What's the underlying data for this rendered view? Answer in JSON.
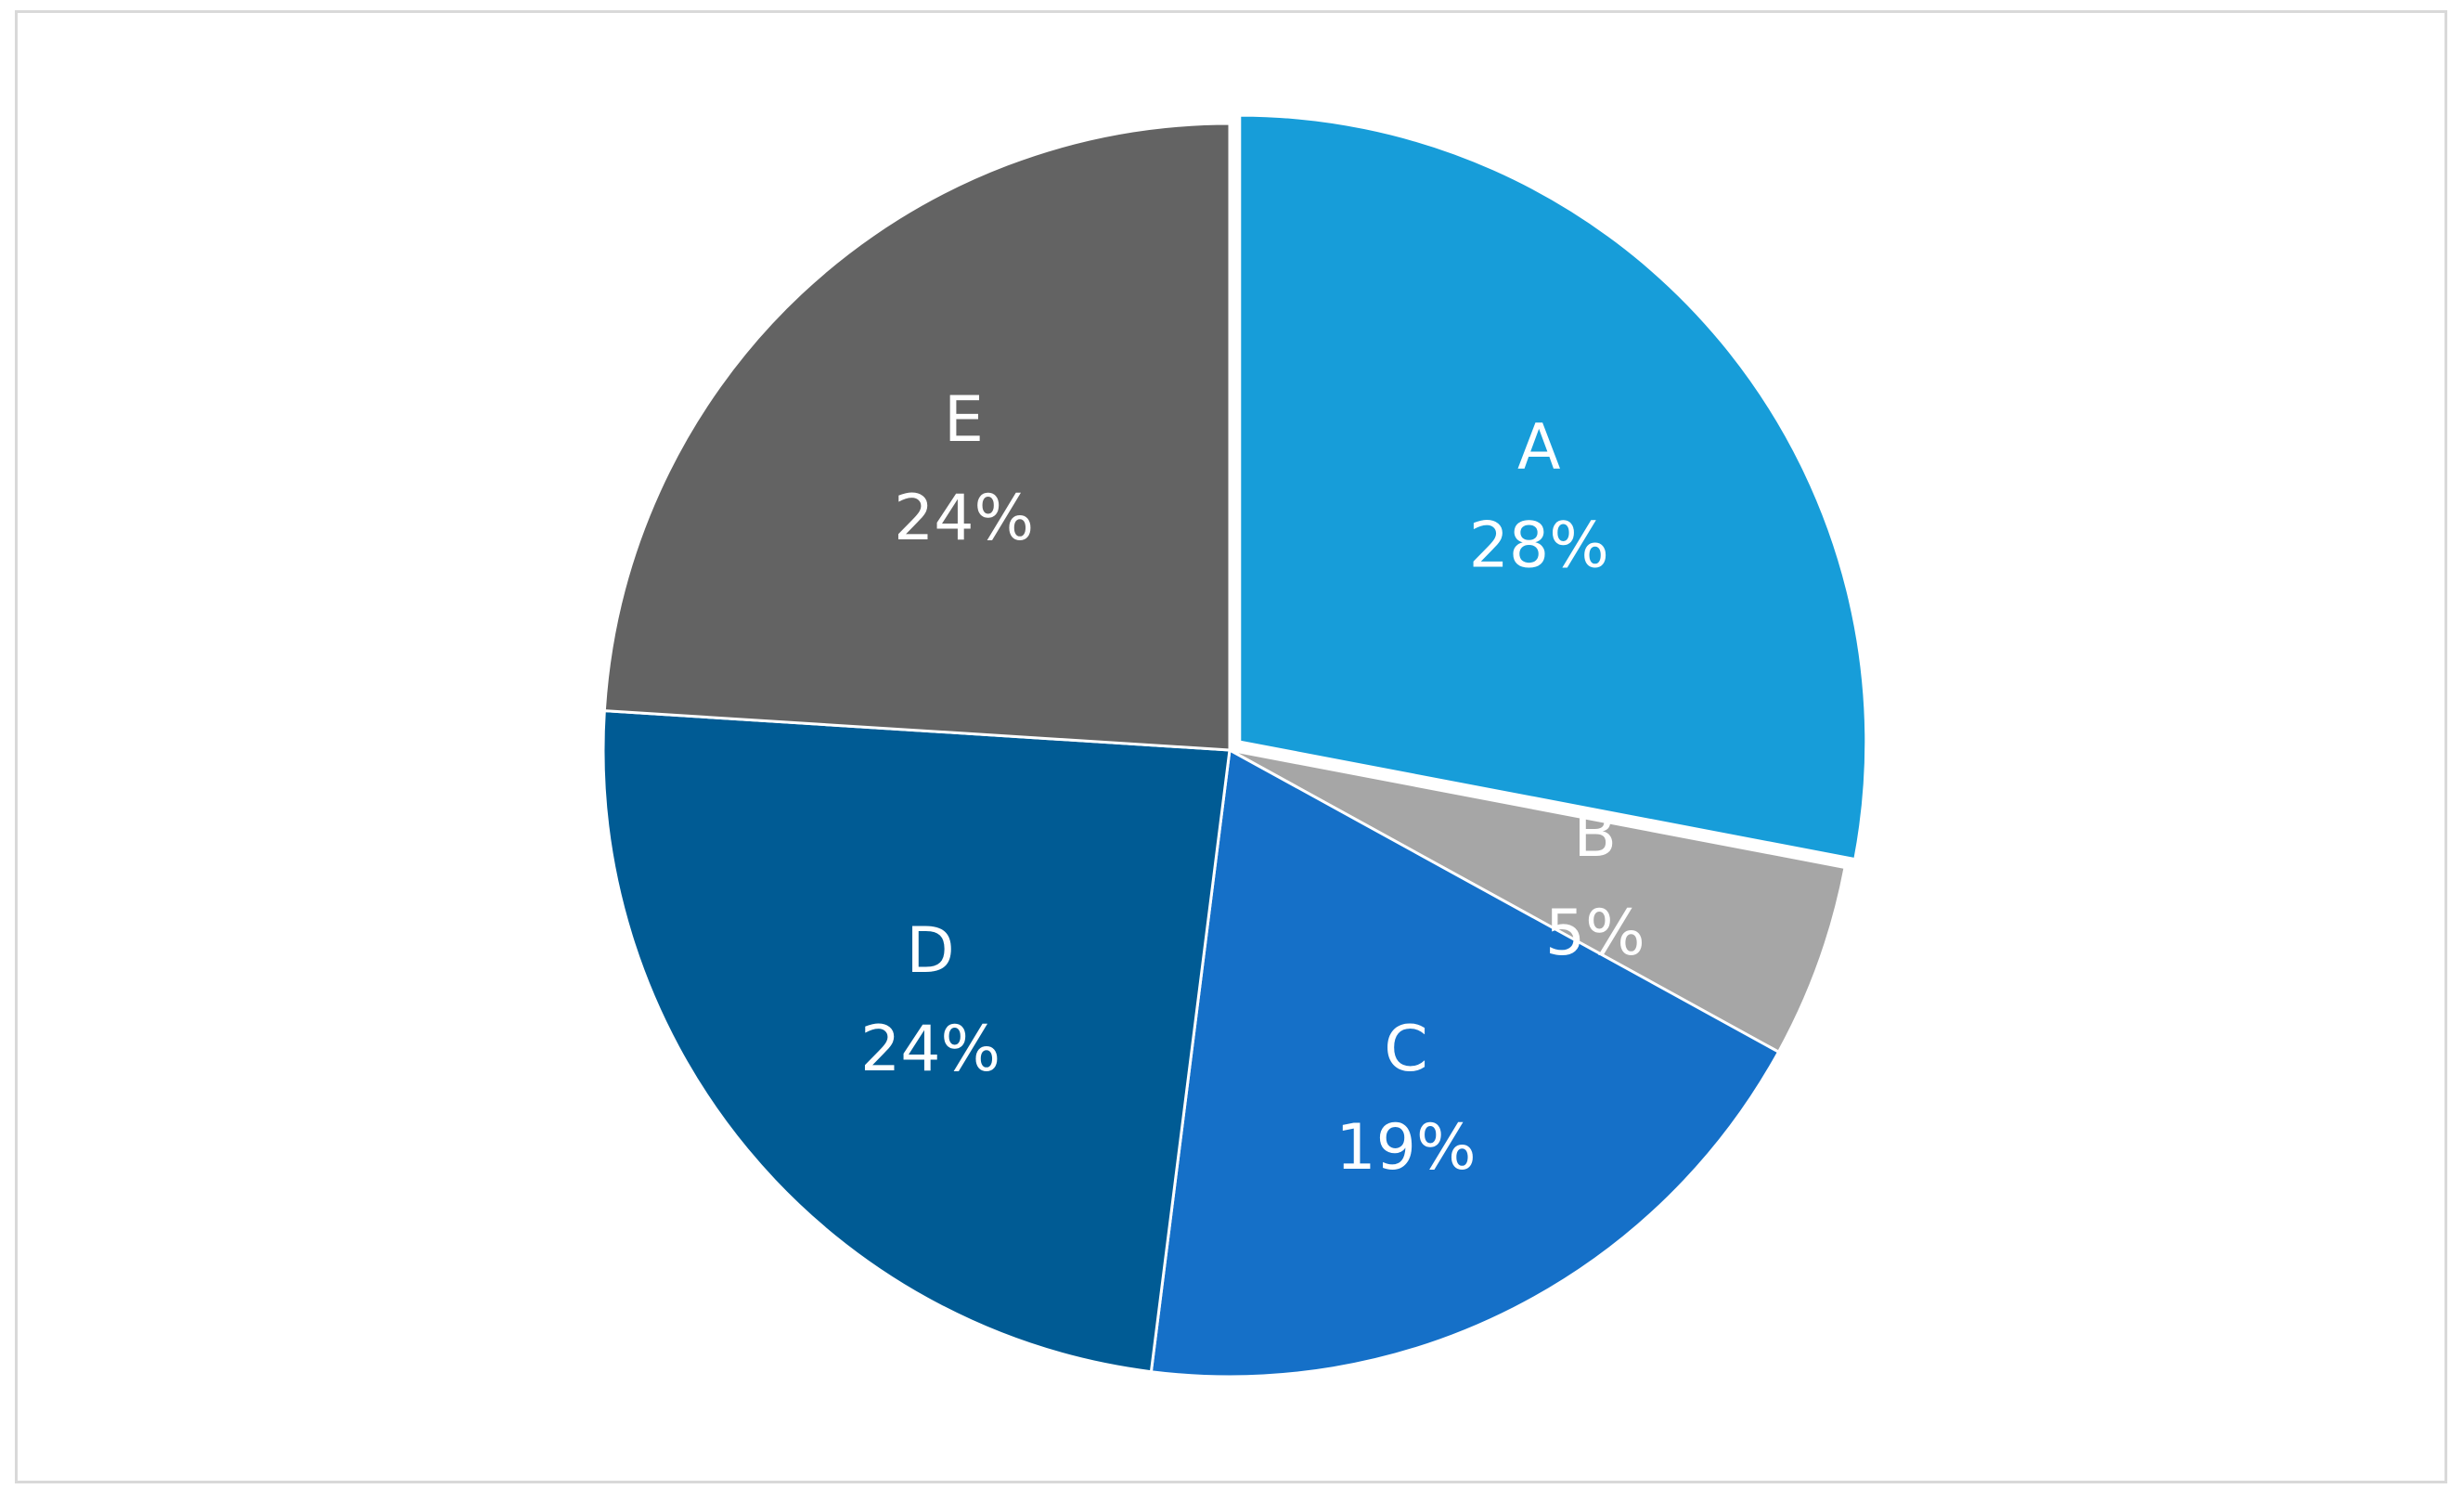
{
  "chart_data": {
    "type": "pie",
    "categories": [
      "A",
      "B",
      "C",
      "D",
      "E"
    ],
    "values": [
      28,
      5,
      19,
      24,
      24
    ],
    "labels": [
      "28%",
      "5%",
      "19%",
      "24%",
      "24%"
    ],
    "colors": [
      "#179dd9",
      "#a6a6a6",
      "#1570c8",
      "#005b94",
      "#636363"
    ],
    "exploded_category": "A",
    "start_angle_deg": 0,
    "direction": "clockwise",
    "legend": "none"
  }
}
